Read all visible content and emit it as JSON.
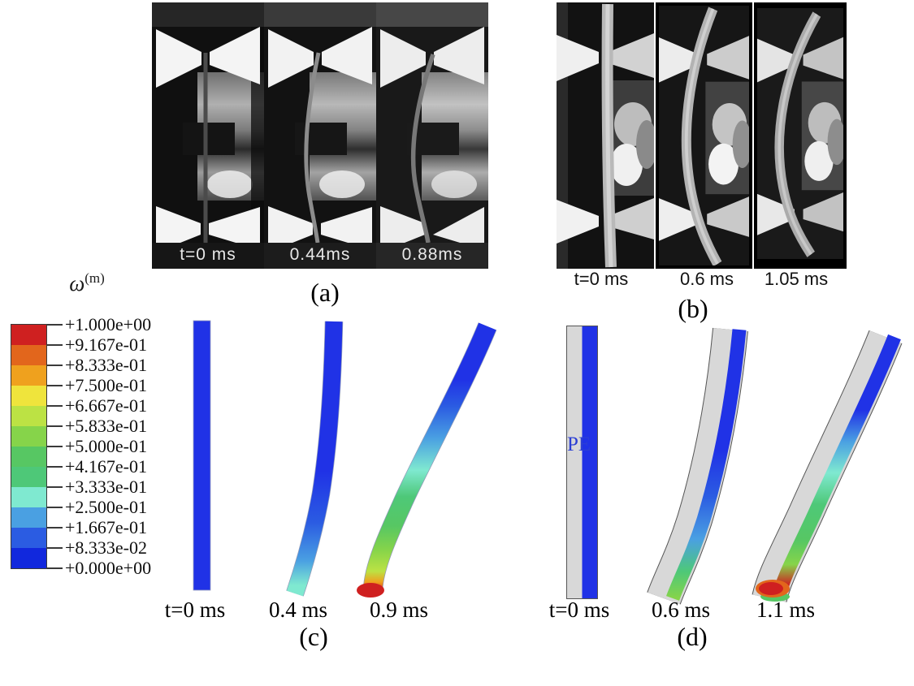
{
  "panels": {
    "a": {
      "caption": "(a)",
      "frames": [
        {
          "label": "t=0 ms"
        },
        {
          "label": "0.44ms"
        },
        {
          "label": "0.88ms"
        }
      ]
    },
    "b": {
      "caption": "(b)",
      "frames": [
        {
          "label": "t=0 ms"
        },
        {
          "label": "0.6 ms"
        },
        {
          "label": "1.05 ms"
        }
      ]
    },
    "c": {
      "caption": "(c)",
      "frames": [
        {
          "label": "t=0 ms"
        },
        {
          "label": "0.4 ms"
        },
        {
          "label": "0.9 ms"
        }
      ]
    },
    "d": {
      "caption": "(d)",
      "material_label": "PE",
      "frames": [
        {
          "label": "t=0 ms"
        },
        {
          "label": "0.6 ms"
        },
        {
          "label": "1.1 ms"
        }
      ]
    }
  },
  "legend": {
    "title_symbol": "ω",
    "title_superscript": "(m)",
    "ticks": [
      "+1.000e+00",
      "+9.167e-01",
      "+8.333e-01",
      "+7.500e-01",
      "+6.667e-01",
      "+5.833e-01",
      "+5.000e-01",
      "+4.167e-01",
      "+3.333e-01",
      "+2.500e-01",
      "+1.667e-01",
      "+8.333e-02",
      "+0.000e+00"
    ],
    "band_colors": [
      "#cf2020",
      "#e2661c",
      "#efa11e",
      "#efe43c",
      "#bce244",
      "#86d44a",
      "#57c763",
      "#4ec878",
      "#7fe9d0",
      "#4aa0e2",
      "#2b5ce2",
      "#1128dd"
    ]
  },
  "colors": {
    "matrix_blue": "#2032e6",
    "coating_gray": "#d8d8d8",
    "damage_red": "#cf2020"
  }
}
